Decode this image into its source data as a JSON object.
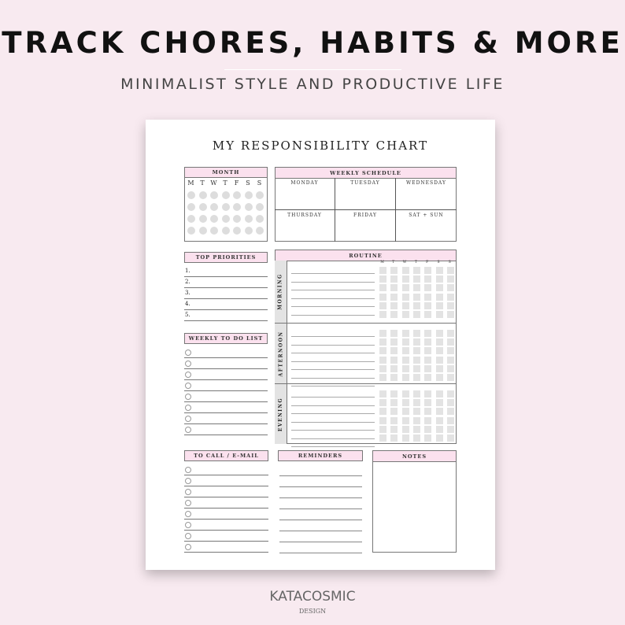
{
  "banner": {
    "headline": "TRACK CHORES, HABITS & MORE",
    "subheadline": "MINIMALIST STYLE AND PRODUCTIVE LIFE"
  },
  "sheet": {
    "title": "MY RESPONSIBILITY CHART",
    "month": {
      "label": "MONTH",
      "days": [
        "M",
        "T",
        "W",
        "T",
        "F",
        "S",
        "S"
      ]
    },
    "weekly_schedule": {
      "label": "WEEKLY SCHEDULE",
      "days": [
        "MONDAY",
        "TUESDAY",
        "WEDNESDAY",
        "THURSDAY",
        "FRIDAY",
        "SAT + SUN"
      ]
    },
    "top_priorities": {
      "label": "TOP PRIORITIES",
      "items": [
        "1.",
        "2.",
        "3.",
        "4.",
        "5."
      ]
    },
    "weekly_todo": {
      "label": "WEEKLY TO DO LIST"
    },
    "routine": {
      "label": "ROUTINE",
      "days": [
        "M",
        "T",
        "W",
        "T",
        "F",
        "S",
        "S"
      ],
      "sections": [
        "MORNING",
        "AFTERNOON",
        "EVENING"
      ]
    },
    "to_call": {
      "label": "TO CALL / E-MAIL"
    },
    "reminders": {
      "label": "REMINDERS"
    },
    "notes": {
      "label": "NOTES"
    }
  },
  "brand": {
    "name": "KATACOSMIC",
    "tagline": "DESIGN"
  },
  "colors": {
    "background": "#f8eaf0",
    "header_pink": "#fbe1ee",
    "dot_gray": "#dddddd"
  }
}
